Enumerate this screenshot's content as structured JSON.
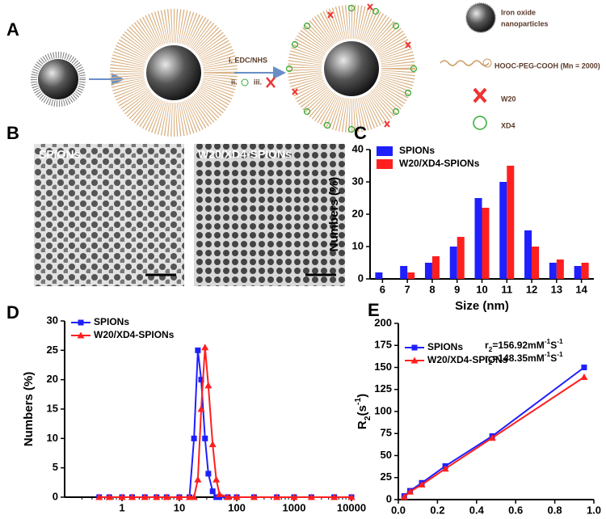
{
  "panels": {
    "a": "A",
    "b": "B",
    "c": "C",
    "d": "D",
    "e": "E"
  },
  "diagram": {
    "step1": "i. EDC/NHS",
    "step2": "ii.",
    "step3": "iii.",
    "legend_iron_1": "Iron oxide",
    "legend_iron_2": "nanoparticles",
    "legend_peg": "HOOC-PEG-COOH (Mn = 2000)",
    "legend_w20": "W20",
    "legend_xd4": "XD4"
  },
  "images": {
    "left": "SPIONs",
    "right": "W20/XD4-SPIONs"
  },
  "chart_data": [
    {
      "type": "bar",
      "xlabel": "Size (nm)",
      "ylabel": "Numbers (%)",
      "categories": [
        "6",
        "7",
        "8",
        "9",
        "10",
        "11",
        "12",
        "13",
        "14"
      ],
      "series": [
        {
          "name": "SPIONs",
          "color": "#1f1fff",
          "values": [
            2,
            4,
            5,
            10,
            25,
            30,
            15,
            5,
            4
          ]
        },
        {
          "name": "W20/XD4-SPIONs",
          "color": "#ff1f1f",
          "values": [
            0,
            2,
            7,
            13,
            22,
            35,
            10,
            6,
            5
          ]
        }
      ],
      "ylim": [
        0,
        40
      ],
      "yticks": [
        0,
        10,
        20,
        30,
        40
      ],
      "legend": "top-left"
    },
    {
      "type": "line",
      "xlabel": "Size (nm)",
      "ylabel": "Numbers (%)",
      "xscale": "log",
      "x": [
        0.4,
        0.6,
        1,
        1.5,
        2.5,
        4,
        6,
        10,
        15,
        18,
        21,
        24,
        28,
        32,
        38,
        44,
        50,
        70,
        100,
        200,
        500,
        1000,
        2000,
        5000,
        10000
      ],
      "series": [
        {
          "name": "SPIONs",
          "color": "#1f1fff",
          "marker": "square",
          "values": [
            0,
            0,
            0,
            0,
            0,
            0,
            0,
            0,
            0,
            10,
            25,
            20,
            10,
            4,
            1,
            0,
            0,
            0,
            0,
            0,
            0,
            0,
            0,
            0,
            0
          ]
        },
        {
          "name": "W20/XD4-SPIONs",
          "color": "#ff1f1f",
          "marker": "triangle",
          "values": [
            0,
            0,
            0,
            0,
            0,
            0,
            0,
            0,
            0,
            0,
            3,
            15,
            25.5,
            19,
            9,
            3,
            0.5,
            0,
            0,
            0,
            0,
            0,
            0,
            0,
            0
          ]
        }
      ],
      "xlim": [
        0.1,
        10000
      ],
      "xticks": [
        1,
        10,
        100,
        1000,
        10000
      ],
      "ylim": [
        0,
        30
      ],
      "yticks": [
        0,
        5,
        10,
        15,
        20,
        25,
        30
      ],
      "legend": "top-left"
    },
    {
      "type": "line",
      "xlabel": "Fe[mM]",
      "ylabel_parts": [
        {
          "t": "R"
        },
        {
          "t": "2",
          "pos": "sub"
        },
        {
          "t": "(s"
        },
        {
          "t": "-1",
          "pos": "super"
        },
        {
          "t": ")"
        }
      ],
      "x": [
        0.03,
        0.06,
        0.12,
        0.24,
        0.48,
        0.95
      ],
      "series": [
        {
          "name": "SPIONs",
          "color": "#1f1fff",
          "marker": "square",
          "values": [
            4,
            10,
            19,
            38,
            72,
            150
          ],
          "annotation": [
            {
              "t": "r"
            },
            {
              "t": "2",
              "pos": "sub"
            },
            {
              "t": "=156.92mM"
            },
            {
              "t": "-1",
              "pos": "super"
            },
            {
              "t": "S"
            },
            {
              "t": "-1",
              "pos": "super"
            }
          ]
        },
        {
          "name": "W20/XD4-SPIONs",
          "color": "#ff1f1f",
          "marker": "triangle",
          "values": [
            3,
            9,
            17,
            35,
            70,
            139
          ],
          "annotation": [
            {
              "t": "r"
            },
            {
              "t": "2",
              "pos": "sub"
            },
            {
              "t": "=148.35mM"
            },
            {
              "t": "-1",
              "pos": "super"
            },
            {
              "t": "S"
            },
            {
              "t": "-1",
              "pos": "super"
            }
          ]
        }
      ],
      "xlim": [
        0,
        1.0
      ],
      "xticks": [
        {
          "value": 0,
          "label": "0.0"
        },
        {
          "value": 0.2,
          "label": "0.2"
        },
        {
          "value": 0.4,
          "label": "0.4"
        },
        {
          "value": 0.6,
          "label": "0.6"
        },
        {
          "value": 0.8,
          "label": "0.8"
        },
        {
          "value": 1.0,
          "label": "1.0"
        }
      ],
      "ylim": [
        0,
        200
      ],
      "yticks": [
        0,
        25,
        50,
        75,
        100,
        125,
        150,
        175,
        200
      ],
      "legend": "top-left"
    }
  ]
}
